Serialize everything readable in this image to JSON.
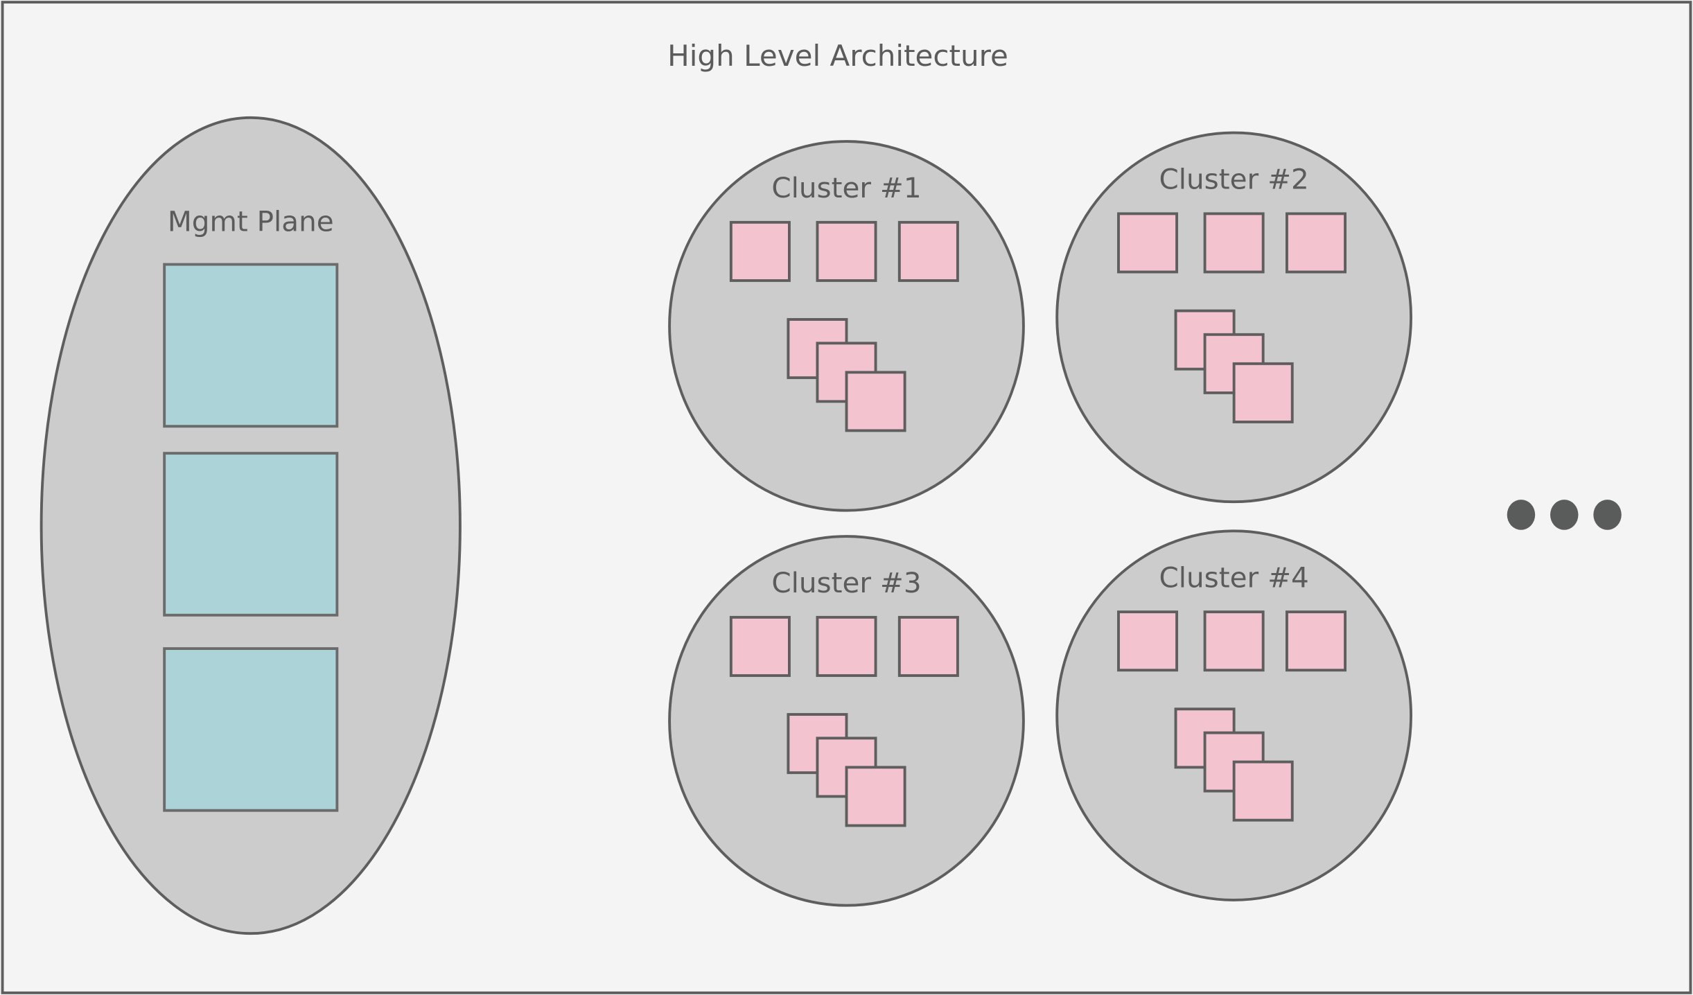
{
  "title": "High Level Architecture",
  "mgmt_plane": {
    "label": "Mgmt Plane",
    "node_count": 3
  },
  "clusters": [
    {
      "label": "Cluster #1"
    },
    {
      "label": "Cluster #2"
    },
    {
      "label": "Cluster #3"
    },
    {
      "label": "Cluster #4"
    }
  ],
  "ellipsis_icon": "more-dots",
  "colors": {
    "background": "#f4f4f4",
    "stroke": "#5e5e5e",
    "container_fill": "#cccccc",
    "mgmt_node_fill": "#acd4d8",
    "cluster_node_fill": "#f3c3cf",
    "dots": "#5a5c5b"
  }
}
